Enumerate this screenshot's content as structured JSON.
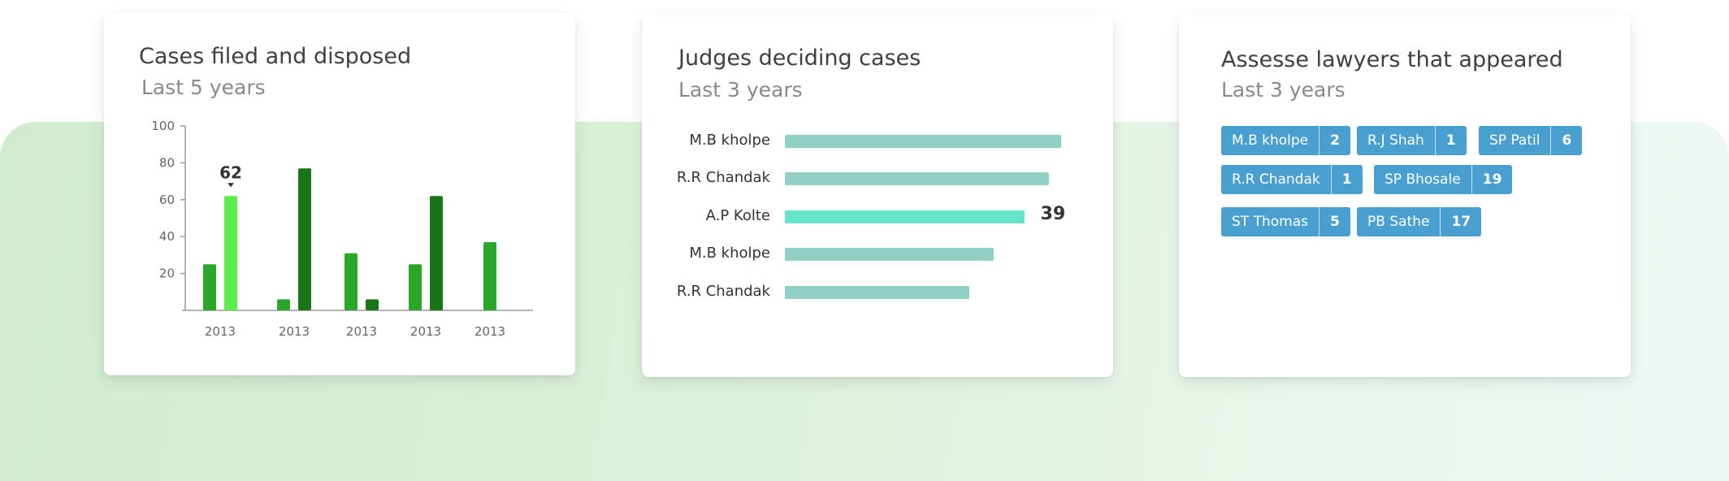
{
  "cards": {
    "cases": {
      "title": "Cases filed and disposed",
      "subtitle": "Last 5 years"
    },
    "judges": {
      "title": "Judges deciding cases",
      "subtitle": "Last 3 years"
    },
    "lawyers": {
      "title": "Assesse lawyers that appeared",
      "subtitle": "Last 3 years"
    }
  },
  "colors": {
    "filed": "#2aa62a",
    "disposed": "#1a7518",
    "highlight_bar": "#5ced4d",
    "judge_bar": "#8fd0c2",
    "judge_bar_highlight": "#64e3c7",
    "tag": "#4a9fd1"
  },
  "chart_data": [
    {
      "type": "bar",
      "title": "Cases filed and disposed",
      "subtitle": "Last 5 years",
      "categories": [
        "2013",
        "2013",
        "2013",
        "2013",
        "2013"
      ],
      "series": [
        {
          "values": [
            25,
            6,
            31,
            25,
            37
          ]
        },
        {
          "values": [
            62,
            77,
            6,
            62,
            null
          ]
        }
      ],
      "highlight": {
        "series": 1,
        "index": 0,
        "label": "62"
      },
      "ylim": [
        0,
        100
      ],
      "yticks": [
        20,
        40,
        60,
        80,
        100
      ]
    },
    {
      "type": "bar",
      "orientation": "horizontal",
      "title": "Judges deciding cases",
      "subtitle": "Last 3 years",
      "categories": [
        "M.B kholpe",
        "R.R Chandak",
        "A.P Kolte",
        "M.B kholpe",
        "R.R Chandak"
      ],
      "values": [
        45,
        43,
        39,
        34,
        30
      ],
      "highlight": {
        "index": 2,
        "label": "39"
      }
    }
  ],
  "lawyers": [
    {
      "name": "M.B kholpe",
      "count": "2"
    },
    {
      "name": "R.J Shah",
      "count": "1"
    },
    {
      "name": "SP Patil",
      "count": "6"
    },
    {
      "name": "R.R Chandak",
      "count": "1"
    },
    {
      "name": "SP Bhosale",
      "count": "19"
    },
    {
      "name": "ST Thomas",
      "count": "5"
    },
    {
      "name": "PB Sathe",
      "count": "17"
    }
  ]
}
